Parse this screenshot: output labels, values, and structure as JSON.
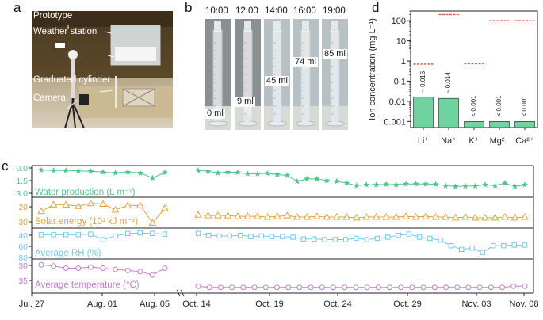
{
  "panels": {
    "a": "a",
    "b": "b",
    "c": "c",
    "d": "d"
  },
  "panel_a": {
    "labels": [
      "Prototype",
      "Weather station",
      "Graduated cylinder",
      "Camera"
    ]
  },
  "panel_b": {
    "times": [
      "10:00",
      "12:00",
      "14:00",
      "16:00",
      "19:00"
    ],
    "volumes": [
      "0 ml",
      "9 ml",
      "45 ml",
      "74 ml",
      "85 ml"
    ]
  },
  "chart_data": [
    {
      "id": "d",
      "type": "bar",
      "ylabel": "Ion concentration (mg L⁻¹)",
      "yscale": "log",
      "ylim": [
        0.0005,
        300
      ],
      "yticks": [
        "0.001",
        "0.01",
        "0.1",
        "1",
        "10",
        "100"
      ],
      "categories": [
        "Li⁺",
        "Na⁺",
        "K⁺",
        "Mg²⁺",
        "Ca²⁺"
      ],
      "values": [
        0.016,
        0.014,
        0.001,
        0.001,
        0.001
      ],
      "data_labels": [
        "~ 0.016",
        "~ 0.014",
        "< 0.001",
        "< 0.001",
        "< 0.001"
      ],
      "limit_values": [
        0.7,
        200,
        0.75,
        100,
        100
      ],
      "colors": {
        "bar": "#6fd3a0",
        "bar_edge": "#1a1a1a",
        "limit": "#e8463a"
      }
    },
    {
      "id": "c",
      "type": "line",
      "xticks": [
        "Jul. 27",
        "Aug. 01",
        "Aug. 05",
        "Oct. 14",
        "Oct. 19",
        "Oct. 24",
        "Oct. 29",
        "Nov. 03",
        "Nov. 08"
      ],
      "series": [
        {
          "name": "Water production (L m⁻²)",
          "color": "#4fc58a",
          "marker": "star",
          "ylim": [
            0,
            3.2
          ],
          "yticks": [
            "0.0",
            "1.5",
            "3.0"
          ],
          "seg1": [
            2.95,
            2.9,
            2.9,
            2.85,
            2.8,
            2.7,
            2.6,
            2.7,
            2.6,
            2.0,
            2.65
          ],
          "seg2": [
            2.9,
            2.8,
            2.6,
            2.7,
            2.65,
            2.5,
            2.5,
            2.55,
            2.4,
            2.3,
            1.6,
            1.9,
            1.9,
            1.7,
            1.6,
            1.4,
            1.1,
            1.2,
            1.2,
            1.25,
            1.2,
            1.3,
            1.3,
            1.3,
            1.25,
            1.1,
            1.0,
            1.05,
            1.05,
            1.2,
            1.1,
            1.4,
            1.0,
            1.2
          ]
        },
        {
          "name": "Solar energy (10³ kJ m⁻²)",
          "color": "#e0a53a",
          "marker": "triangle",
          "ylim": [
            15,
            33
          ],
          "yticks": [
            "20",
            "30"
          ],
          "seg1": [
            25,
            29.5,
            29.5,
            28.5,
            30.5,
            30,
            26,
            29,
            29,
            17,
            27
          ],
          "seg2": [
            22.5,
            22,
            22,
            22,
            21.5,
            21.5,
            21.5,
            21,
            21.5,
            22,
            21,
            21,
            21.5,
            21,
            21,
            21,
            20.5,
            21,
            21,
            21,
            21,
            21.5,
            21,
            21.5,
            21,
            21,
            20.5,
            21,
            20.5,
            20.5,
            20.5,
            21,
            20.5,
            21
          ]
        },
        {
          "name": "Average RH (%)",
          "color": "#78c6ea",
          "marker": "square",
          "ylim": [
            42,
            85
          ],
          "yticks": [
            "40",
            "60",
            "80"
          ],
          "seg1": [
            78,
            78,
            78,
            78,
            79,
            70,
            76,
            80,
            81,
            80,
            79
          ],
          "seg2": [
            80,
            77,
            76,
            76,
            77,
            75,
            76,
            75,
            75,
            74,
            71,
            71,
            70,
            70,
            70,
            72,
            70,
            72,
            74,
            77,
            79,
            74,
            72,
            69,
            60,
            54,
            56,
            49,
            60,
            60,
            61,
            61
          ]
        },
        {
          "name": "Average temperature (°C)",
          "color": "#c77ccf",
          "marker": "circle",
          "ylim": [
            23,
            36
          ],
          "yticks": [
            "30",
            "35"
          ],
          "seg1": [
            34.5,
            34,
            33,
            33,
            33.5,
            33,
            32.5,
            32,
            31.5,
            30,
            33
          ],
          "seg2": [
            25,
            24.5,
            24.5,
            24.5,
            24.5,
            24.5,
            24.5,
            24.5,
            24.5,
            24.5,
            24.5,
            24.5,
            24.5,
            24.5,
            24.5,
            24.5,
            24.5,
            24.5,
            24.5,
            24.5,
            24.5,
            24.5,
            24.5,
            24.5,
            24.5,
            24.5,
            24.5,
            24.5,
            25,
            25
          ]
        }
      ]
    }
  ]
}
